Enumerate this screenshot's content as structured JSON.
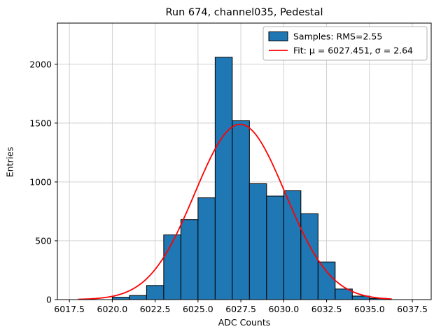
{
  "chart_data": {
    "type": "histogram",
    "title": "Run 674, channel035, Pedestal",
    "xlabel": "ADC Counts",
    "ylabel": "Entries",
    "xlim": [
      6016.8,
      6038.6
    ],
    "ylim": [
      0,
      2350
    ],
    "grid": true,
    "bin_edges": [
      6020,
      6021,
      6022,
      6023,
      6024,
      6025,
      6026,
      6027,
      6028,
      6029,
      6030,
      6031,
      6032,
      6033,
      6034,
      6035,
      6036
    ],
    "counts": [
      20,
      35,
      120,
      550,
      680,
      865,
      2060,
      1520,
      985,
      880,
      925,
      730,
      320,
      90,
      30,
      10
    ],
    "xticks": {
      "values": [
        6017.5,
        6020.0,
        6022.5,
        6025.0,
        6027.5,
        6030.0,
        6032.5,
        6035.0,
        6037.5
      ],
      "labels": [
        "6017.5",
        "6020.0",
        "6022.5",
        "6025.0",
        "6027.5",
        "6030.0",
        "6032.5",
        "6035.0",
        "6037.5"
      ]
    },
    "yticks": {
      "values": [
        0,
        500,
        1000,
        1500,
        2000
      ],
      "labels": [
        "0",
        "500",
        "1000",
        "1500",
        "2000"
      ]
    },
    "fit": {
      "mu": 6027.451,
      "sigma": 2.64,
      "amplitude": 1490,
      "range": [
        6018.0,
        6036.4
      ]
    },
    "legend": {
      "position": "upper right",
      "items": [
        {
          "type": "patch",
          "label": "Samples: RMS=2.55"
        },
        {
          "type": "line",
          "label": "Fit: μ = 6027.451, σ = 2.64"
        }
      ]
    },
    "rms": 2.55,
    "colors": {
      "bar": "#1f77b4",
      "bar_edge": "#000000",
      "fit": "#ff0000",
      "grid": "#cccccc",
      "frame": "#000000",
      "legend_border": "#b3b3b3"
    }
  }
}
